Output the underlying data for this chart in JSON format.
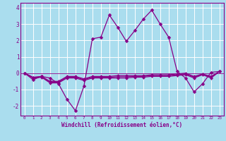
{
  "xlabel": "Windchill (Refroidissement éolien,°C)",
  "background_color": "#aaddee",
  "line_color": "#880088",
  "x": [
    0,
    1,
    2,
    3,
    4,
    5,
    6,
    7,
    8,
    9,
    10,
    11,
    12,
    13,
    14,
    15,
    16,
    17,
    18,
    19,
    20,
    21,
    22,
    23
  ],
  "y_main": [
    0.0,
    -0.4,
    -0.2,
    -0.3,
    -0.65,
    -1.6,
    -2.3,
    -0.8,
    2.1,
    2.2,
    3.55,
    2.8,
    1.95,
    2.6,
    3.3,
    3.85,
    3.0,
    2.2,
    0.1,
    -0.3,
    -1.15,
    -0.65,
    0.05,
    0.1
  ],
  "y_line2": [
    0.0,
    -0.3,
    -0.25,
    -0.6,
    -0.6,
    -0.3,
    -0.3,
    -0.45,
    -0.3,
    -0.3,
    -0.3,
    -0.3,
    -0.3,
    -0.25,
    -0.25,
    -0.2,
    -0.2,
    -0.2,
    -0.15,
    -0.1,
    -0.3,
    -0.1,
    -0.3,
    0.1
  ],
  "y_line3": [
    0.0,
    -0.25,
    -0.2,
    -0.5,
    -0.5,
    -0.2,
    -0.2,
    -0.35,
    -0.2,
    -0.2,
    -0.2,
    -0.15,
    -0.15,
    -0.15,
    -0.15,
    -0.1,
    -0.1,
    -0.1,
    -0.05,
    -0.0,
    -0.2,
    -0.05,
    -0.2,
    0.1
  ],
  "y_line4": [
    0.0,
    -0.28,
    -0.22,
    -0.55,
    -0.55,
    -0.25,
    -0.25,
    -0.4,
    -0.25,
    -0.25,
    -0.25,
    -0.22,
    -0.22,
    -0.2,
    -0.2,
    -0.15,
    -0.15,
    -0.15,
    -0.1,
    -0.05,
    -0.25,
    -0.07,
    -0.25,
    0.1
  ],
  "ylim": [
    -2.6,
    4.3
  ],
  "xlim": [
    -0.5,
    23.5
  ],
  "yticks": [
    -2,
    -1,
    0,
    1,
    2,
    3,
    4
  ],
  "xticks": [
    0,
    1,
    2,
    3,
    4,
    5,
    6,
    7,
    8,
    9,
    10,
    11,
    12,
    13,
    14,
    15,
    16,
    17,
    18,
    19,
    20,
    21,
    22,
    23
  ]
}
